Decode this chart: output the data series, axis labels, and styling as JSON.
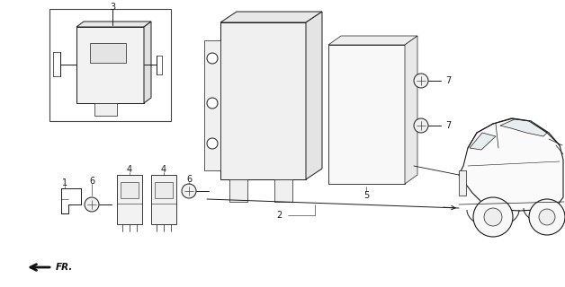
{
  "bg_color": "#ffffff",
  "fig_width": 6.28,
  "fig_height": 3.2,
  "dpi": 100,
  "line_color": "#1a1a1a",
  "lw": 0.7
}
